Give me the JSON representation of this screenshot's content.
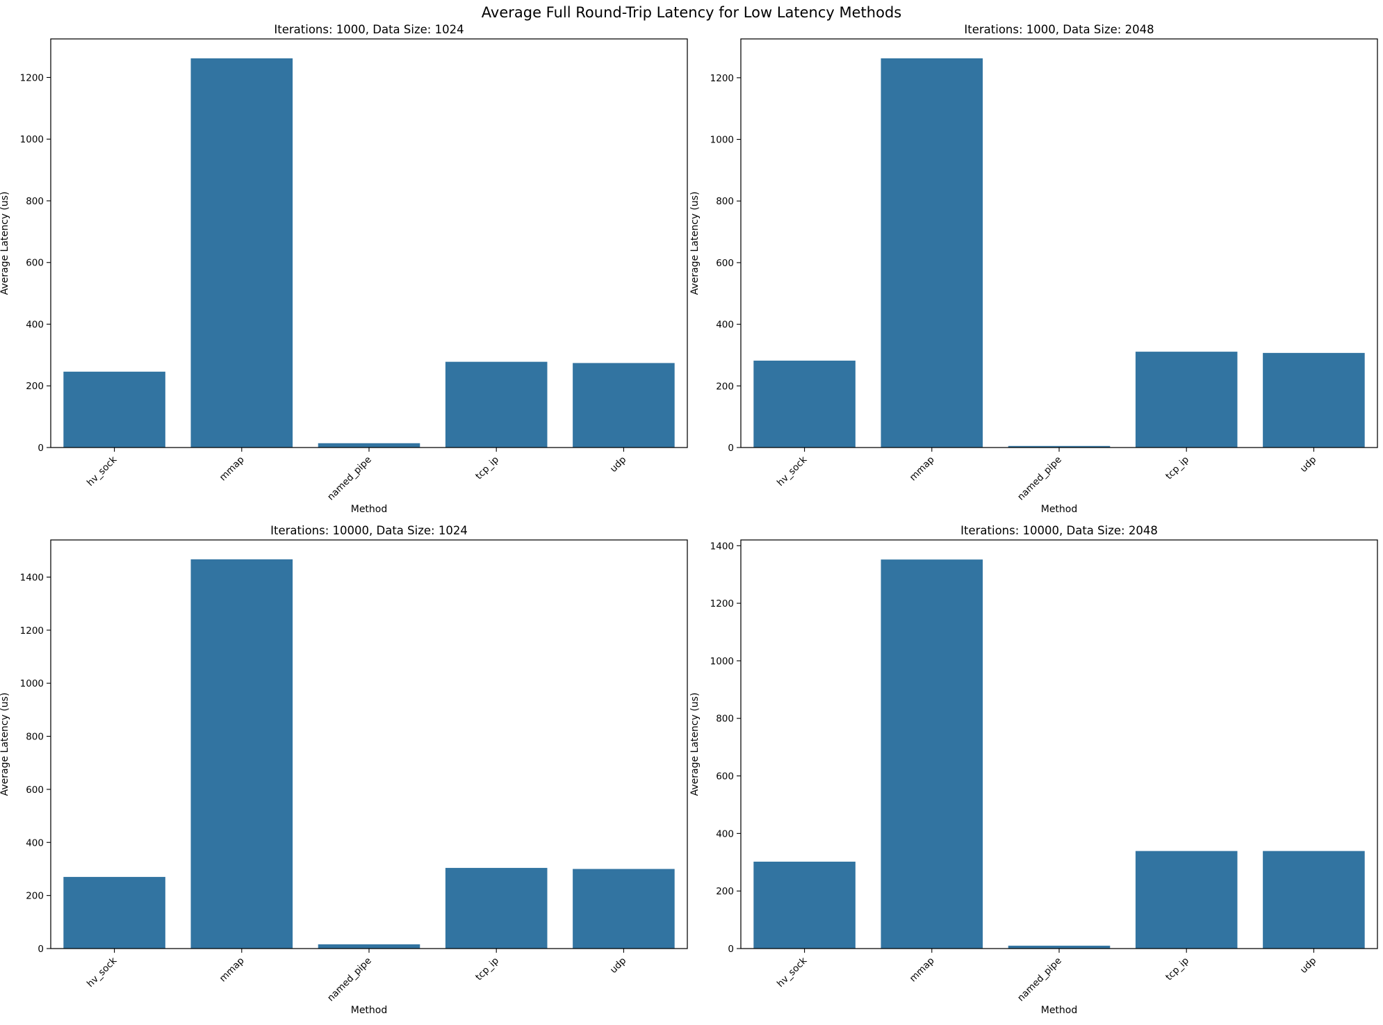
{
  "figure": {
    "title": "Average Full Round-Trip Latency for Low Latency Methods",
    "bar_color": "#3274a1",
    "axis_color": "#000000"
  },
  "chart_data": [
    {
      "type": "bar",
      "title": "Iterations: 1000, Data Size: 1024",
      "xlabel": "Method",
      "ylabel": "Average Latency (us)",
      "categories": [
        "hv_sock",
        "mmap",
        "named_pipe",
        "tcp_ip",
        "udp"
      ],
      "values": [
        246,
        1262,
        14,
        278,
        274
      ],
      "ylim": [
        0,
        1325
      ],
      "yticks": [
        0,
        200,
        400,
        600,
        800,
        1000,
        1200
      ]
    },
    {
      "type": "bar",
      "title": "Iterations: 1000, Data Size: 2048",
      "xlabel": "Method",
      "ylabel": "Average Latency (us)",
      "categories": [
        "hv_sock",
        "mmap",
        "named_pipe",
        "tcp_ip",
        "udp"
      ],
      "values": [
        282,
        1263,
        5,
        311,
        307
      ],
      "ylim": [
        0,
        1326
      ],
      "yticks": [
        0,
        200,
        400,
        600,
        800,
        1000,
        1200
      ]
    },
    {
      "type": "bar",
      "title": "Iterations: 10000, Data Size: 1024",
      "xlabel": "Method",
      "ylabel": "Average Latency (us)",
      "categories": [
        "hv_sock",
        "mmap",
        "named_pipe",
        "tcp_ip",
        "udp"
      ],
      "values": [
        270,
        1467,
        16,
        304,
        300
      ],
      "ylim": [
        0,
        1540
      ],
      "yticks": [
        0,
        200,
        400,
        600,
        800,
        1000,
        1200,
        1400
      ]
    },
    {
      "type": "bar",
      "title": "Iterations: 10000, Data Size: 2048",
      "xlabel": "Method",
      "ylabel": "Average Latency (us)",
      "categories": [
        "hv_sock",
        "mmap",
        "named_pipe",
        "tcp_ip",
        "udp"
      ],
      "values": [
        302,
        1352,
        10,
        339,
        339
      ],
      "ylim": [
        0,
        1420
      ],
      "yticks": [
        0,
        200,
        400,
        600,
        800,
        1000,
        1200,
        1400
      ]
    }
  ]
}
